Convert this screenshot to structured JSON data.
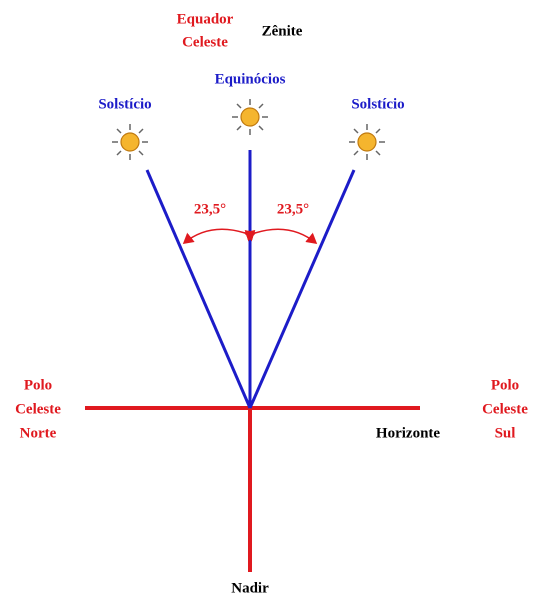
{
  "labels": {
    "equator": [
      "Equador",
      "Celeste"
    ],
    "zenith": "Zênite",
    "equinoxes": "Equinócios",
    "solstice_left": "Solstício",
    "solstice_right": "Solstício",
    "angle_left": "23,5°",
    "angle_right": "23,5°",
    "north_pole": [
      "Polo",
      "Celeste",
      "Norte"
    ],
    "south_pole": [
      "Polo",
      "Celeste",
      "Sul"
    ],
    "horizon": "Horizonte",
    "nadir": "Nadir"
  }
}
